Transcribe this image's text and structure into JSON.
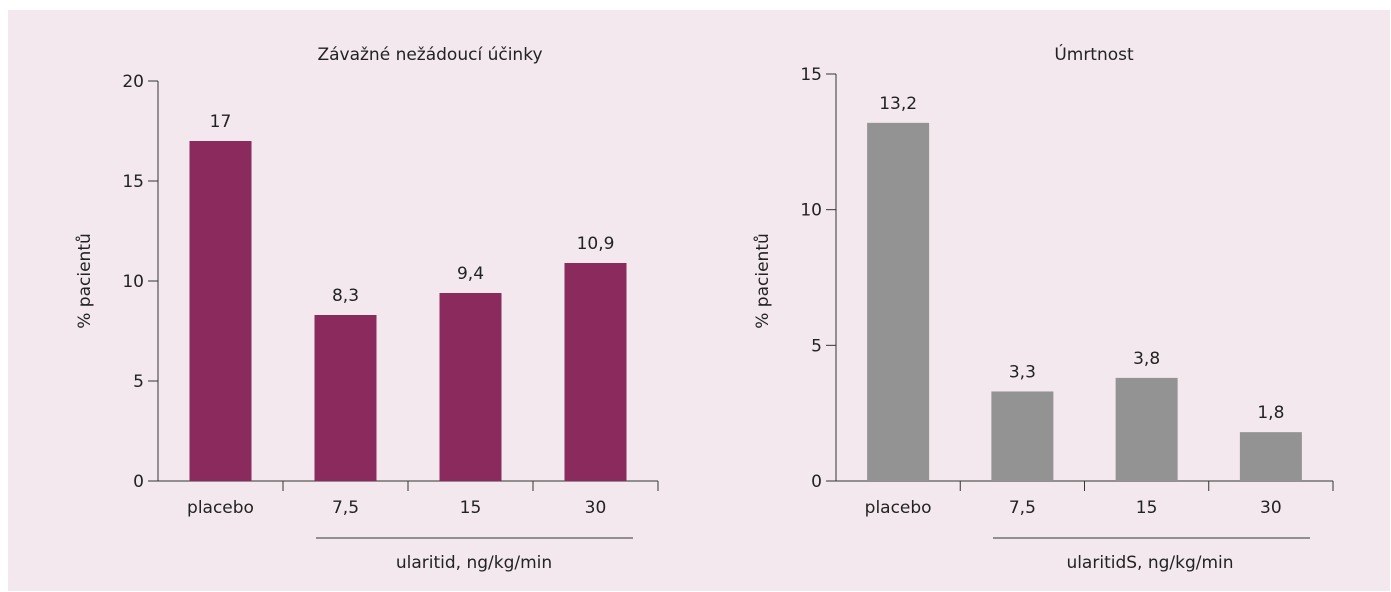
{
  "chart_data": [
    {
      "type": "bar",
      "title": "Závažné nežádoucí účinky",
      "ylabel": "% pacientů",
      "xlabel": "ularitid, ng/kg/min",
      "categories": [
        "placebo",
        "7,5",
        "15",
        "30"
      ],
      "values": [
        17,
        8.3,
        9.4,
        10.9
      ],
      "value_labels": [
        "17",
        "8,3",
        "9,4",
        "10,9"
      ],
      "ylim": [
        0,
        20
      ],
      "yticks": [
        0,
        5,
        10,
        15,
        20
      ],
      "grid": false,
      "colors": {
        "bar": "#8b2a5c"
      }
    },
    {
      "type": "bar",
      "title": "Úmrtnost",
      "ylabel": "% pacientů",
      "xlabel": "ularitidS, ng/kg/min",
      "categories": [
        "placebo",
        "7,5",
        "15",
        "30"
      ],
      "values": [
        13.2,
        3.3,
        3.8,
        1.8
      ],
      "value_labels": [
        "13,2",
        "3,3",
        "3,8",
        "1,8"
      ],
      "ylim": [
        0,
        15
      ],
      "yticks": [
        0,
        5,
        10,
        15
      ],
      "grid": false,
      "colors": {
        "bar": "#939393"
      }
    }
  ],
  "colors": {
    "background": "#f3e8ee"
  }
}
